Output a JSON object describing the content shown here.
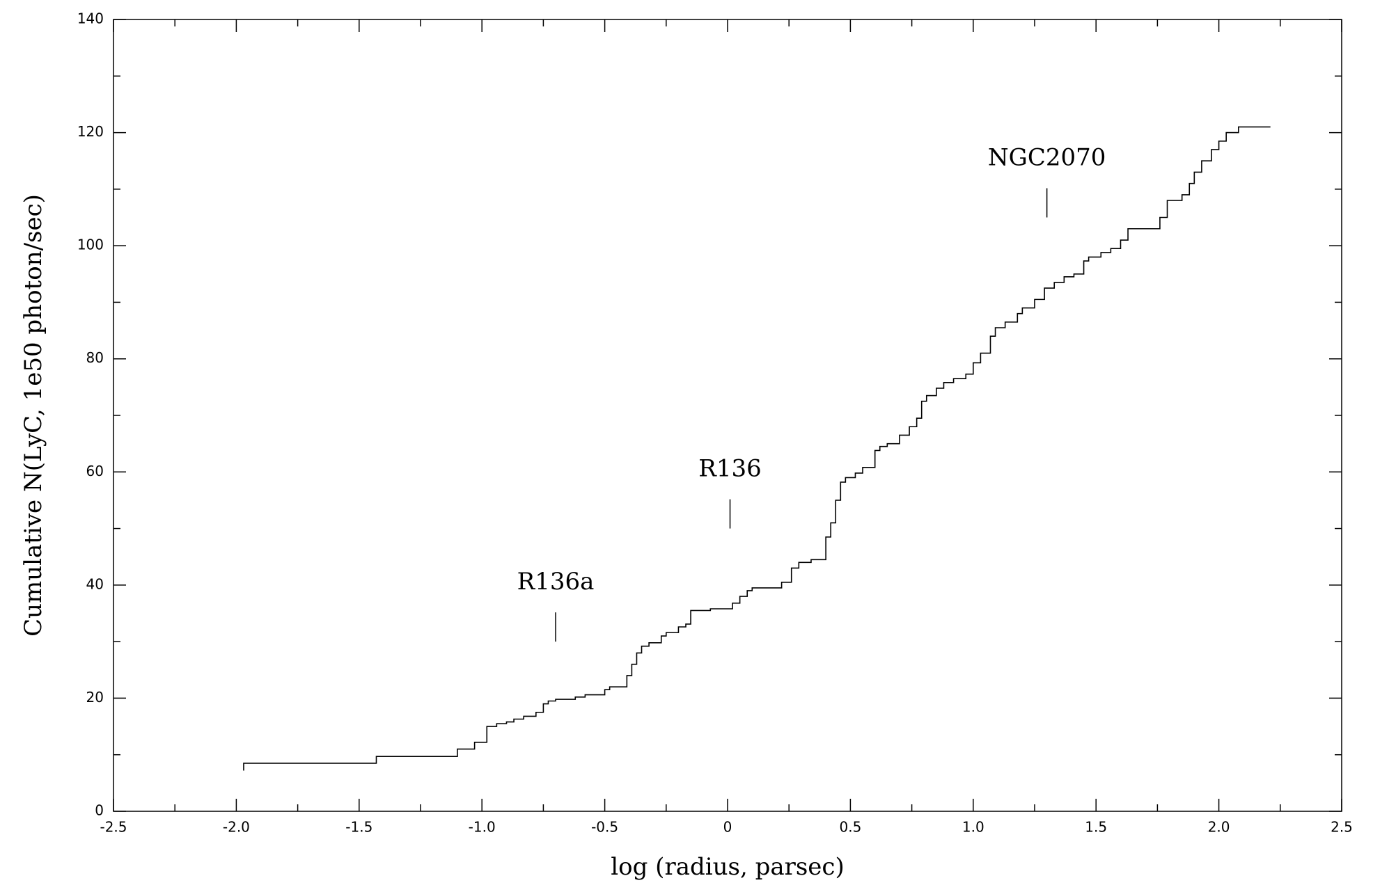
{
  "chart_data": {
    "type": "step",
    "xlabel": "log (radius, parsec)",
    "ylabel": "Cumulative N(LyC, 1e50 photon/sec)",
    "xlim": [
      -2.5,
      2.5
    ],
    "ylim": [
      0,
      140
    ],
    "xticks": [
      -2.5,
      {
        "value": -2,
        "label": "-2.0"
      },
      -1.5,
      {
        "value": -1,
        "label": "-1.0"
      },
      -0.5,
      0,
      0.5,
      {
        "value": 1,
        "label": "1.0"
      },
      1.5,
      {
        "value": 2,
        "label": "2.0"
      },
      2.5
    ],
    "yticks": [
      0,
      20,
      40,
      60,
      80,
      100,
      120,
      140
    ],
    "xminor_ticks": [
      -2.25,
      -1.75,
      -1.25,
      -0.75,
      -0.25,
      0.25,
      0.75,
      1.25,
      1.75,
      2.25
    ],
    "yminor_ticks": [
      10,
      30,
      50,
      70,
      90,
      110,
      130
    ],
    "color": "#000000",
    "series": [
      {
        "x": [
          -1.97,
          -1.43,
          -1.1,
          -1.03,
          -0.98,
          -0.94,
          -0.9,
          -0.87,
          -0.83,
          -0.78,
          -0.75,
          -0.73,
          -0.7,
          -0.62,
          -0.58,
          -0.5,
          -0.48,
          -0.41,
          -0.39,
          -0.37,
          -0.35,
          -0.32,
          -0.27,
          -0.25,
          -0.2,
          -0.17,
          -0.15,
          -0.07,
          0.02,
          0.05,
          0.08,
          0.1,
          0.22,
          0.26,
          0.29,
          0.34,
          0.4,
          0.42,
          0.44,
          0.46,
          0.48,
          0.52,
          0.55,
          0.6,
          0.62,
          0.65,
          0.7,
          0.74,
          0.77,
          0.79,
          0.81,
          0.85,
          0.88,
          0.92,
          0.97,
          1.0,
          1.03,
          1.07,
          1.09,
          1.13,
          1.18,
          1.2,
          1.25,
          1.29,
          1.33,
          1.37,
          1.41,
          1.45,
          1.47,
          1.52,
          1.56,
          1.6,
          1.63,
          1.76,
          1.79,
          1.85,
          1.88,
          1.9,
          1.93,
          1.97,
          2.0,
          2.03,
          2.08,
          2.12,
          2.21
        ],
        "values": [
          7.2,
          8.5,
          9.7,
          11,
          12.2,
          15,
          15.5,
          15.8,
          16.3,
          16.8,
          17.5,
          19,
          19.5,
          19.8,
          20.2,
          20.6,
          21.5,
          22,
          24,
          26,
          28,
          29.2,
          29.8,
          31,
          31.6,
          32.6,
          33.1,
          35.5,
          35.8,
          36.8,
          38,
          39,
          39.5,
          40.5,
          43,
          44,
          44.5,
          48.5,
          51,
          55,
          58.2,
          59,
          59.8,
          60.8,
          63.8,
          64.5,
          65,
          66.5,
          68,
          69.5,
          72.5,
          73.5,
          74.8,
          75.8,
          76.5,
          77.3,
          79.3,
          81,
          84,
          85.5,
          86.5,
          88,
          89,
          90.5,
          92.5,
          93.5,
          94.5,
          95,
          97.3,
          98,
          98.8,
          99.5,
          101,
          103,
          105,
          108,
          109,
          111,
          113,
          115,
          117,
          118.5,
          120,
          121,
          121
        ]
      }
    ],
    "annotations": [
      {
        "text": "R136a",
        "x": -0.7,
        "y": 30
      },
      {
        "text": "R136",
        "x": 0.01,
        "y": 50
      },
      {
        "text": "NGC2070",
        "x": 1.3,
        "y": 105
      }
    ]
  }
}
